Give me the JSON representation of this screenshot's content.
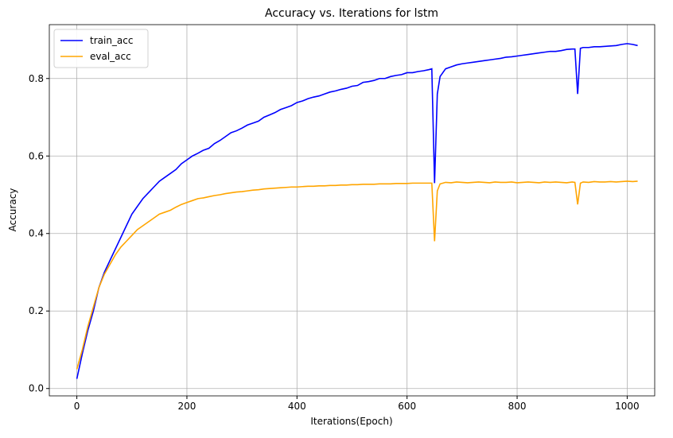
{
  "chart_data": {
    "type": "line",
    "title": "Accuracy vs. Iterations for lstm",
    "x_label": "Iterations(Epoch)",
    "y_label": "Accuracy",
    "x": [
      0,
      10,
      20,
      30,
      40,
      50,
      60,
      70,
      80,
      90,
      100,
      110,
      120,
      130,
      140,
      150,
      160,
      170,
      180,
      190,
      200,
      210,
      220,
      230,
      240,
      250,
      260,
      270,
      280,
      290,
      300,
      310,
      320,
      330,
      340,
      350,
      360,
      370,
      380,
      390,
      400,
      410,
      420,
      430,
      440,
      450,
      460,
      470,
      480,
      490,
      500,
      510,
      520,
      530,
      540,
      550,
      560,
      570,
      580,
      590,
      600,
      610,
      620,
      630,
      640,
      645,
      650,
      655,
      660,
      670,
      680,
      690,
      700,
      710,
      720,
      730,
      740,
      750,
      760,
      770,
      780,
      790,
      800,
      810,
      820,
      830,
      840,
      850,
      860,
      870,
      880,
      890,
      900,
      905,
      910,
      915,
      920,
      930,
      940,
      950,
      960,
      970,
      980,
      990,
      1000,
      1010,
      1019
    ],
    "series": [
      {
        "name": "train_acc",
        "color": "#0000ff",
        "values": [
          0.025,
          0.09,
          0.15,
          0.2,
          0.26,
          0.3,
          0.33,
          0.36,
          0.39,
          0.42,
          0.45,
          0.47,
          0.49,
          0.505,
          0.52,
          0.535,
          0.545,
          0.555,
          0.565,
          0.58,
          0.59,
          0.6,
          0.607,
          0.615,
          0.62,
          0.632,
          0.64,
          0.65,
          0.66,
          0.665,
          0.672,
          0.68,
          0.685,
          0.69,
          0.7,
          0.706,
          0.712,
          0.72,
          0.725,
          0.73,
          0.738,
          0.742,
          0.748,
          0.752,
          0.755,
          0.76,
          0.765,
          0.768,
          0.772,
          0.775,
          0.78,
          0.782,
          0.79,
          0.792,
          0.795,
          0.8,
          0.8,
          0.805,
          0.808,
          0.81,
          0.815,
          0.815,
          0.818,
          0.82,
          0.823,
          0.825,
          0.53,
          0.76,
          0.805,
          0.825,
          0.83,
          0.835,
          0.838,
          0.84,
          0.842,
          0.844,
          0.846,
          0.848,
          0.85,
          0.852,
          0.855,
          0.856,
          0.858,
          0.86,
          0.862,
          0.864,
          0.866,
          0.868,
          0.87,
          0.87,
          0.872,
          0.875,
          0.876,
          0.876,
          0.76,
          0.878,
          0.88,
          0.88,
          0.882,
          0.882,
          0.883,
          0.884,
          0.885,
          0.888,
          0.89,
          0.888,
          0.885
        ]
      },
      {
        "name": "eval_acc",
        "color": "#ffa500",
        "values": [
          0.05,
          0.1,
          0.16,
          0.21,
          0.26,
          0.295,
          0.32,
          0.345,
          0.365,
          0.38,
          0.395,
          0.41,
          0.42,
          0.43,
          0.44,
          0.45,
          0.455,
          0.46,
          0.468,
          0.475,
          0.48,
          0.485,
          0.49,
          0.492,
          0.495,
          0.498,
          0.5,
          0.503,
          0.505,
          0.507,
          0.508,
          0.51,
          0.512,
          0.513,
          0.515,
          0.516,
          0.517,
          0.518,
          0.519,
          0.52,
          0.52,
          0.521,
          0.522,
          0.522,
          0.523,
          0.523,
          0.524,
          0.524,
          0.525,
          0.525,
          0.526,
          0.526,
          0.527,
          0.527,
          0.527,
          0.528,
          0.528,
          0.528,
          0.529,
          0.529,
          0.529,
          0.53,
          0.53,
          0.53,
          0.53,
          0.53,
          0.38,
          0.51,
          0.528,
          0.532,
          0.531,
          0.533,
          0.532,
          0.531,
          0.532,
          0.533,
          0.532,
          0.531,
          0.533,
          0.532,
          0.532,
          0.533,
          0.531,
          0.532,
          0.533,
          0.532,
          0.531,
          0.533,
          0.532,
          0.533,
          0.532,
          0.531,
          0.533,
          0.532,
          0.475,
          0.53,
          0.533,
          0.532,
          0.534,
          0.533,
          0.533,
          0.534,
          0.533,
          0.534,
          0.535,
          0.534,
          0.535
        ]
      }
    ],
    "xlim": [
      -50,
      1050
    ],
    "ylim": [
      -0.019,
      0.939
    ],
    "xticks": [
      0,
      200,
      400,
      600,
      800,
      1000
    ],
    "yticks": [
      {
        "value": 0,
        "label": "0.0"
      },
      {
        "value": 0.2,
        "label": "0.2"
      },
      {
        "value": 0.4,
        "label": "0.4"
      },
      {
        "value": 0.6,
        "label": "0.6"
      },
      {
        "value": 0.8,
        "label": "0.8"
      }
    ],
    "grid": true,
    "legend": "upper left"
  }
}
